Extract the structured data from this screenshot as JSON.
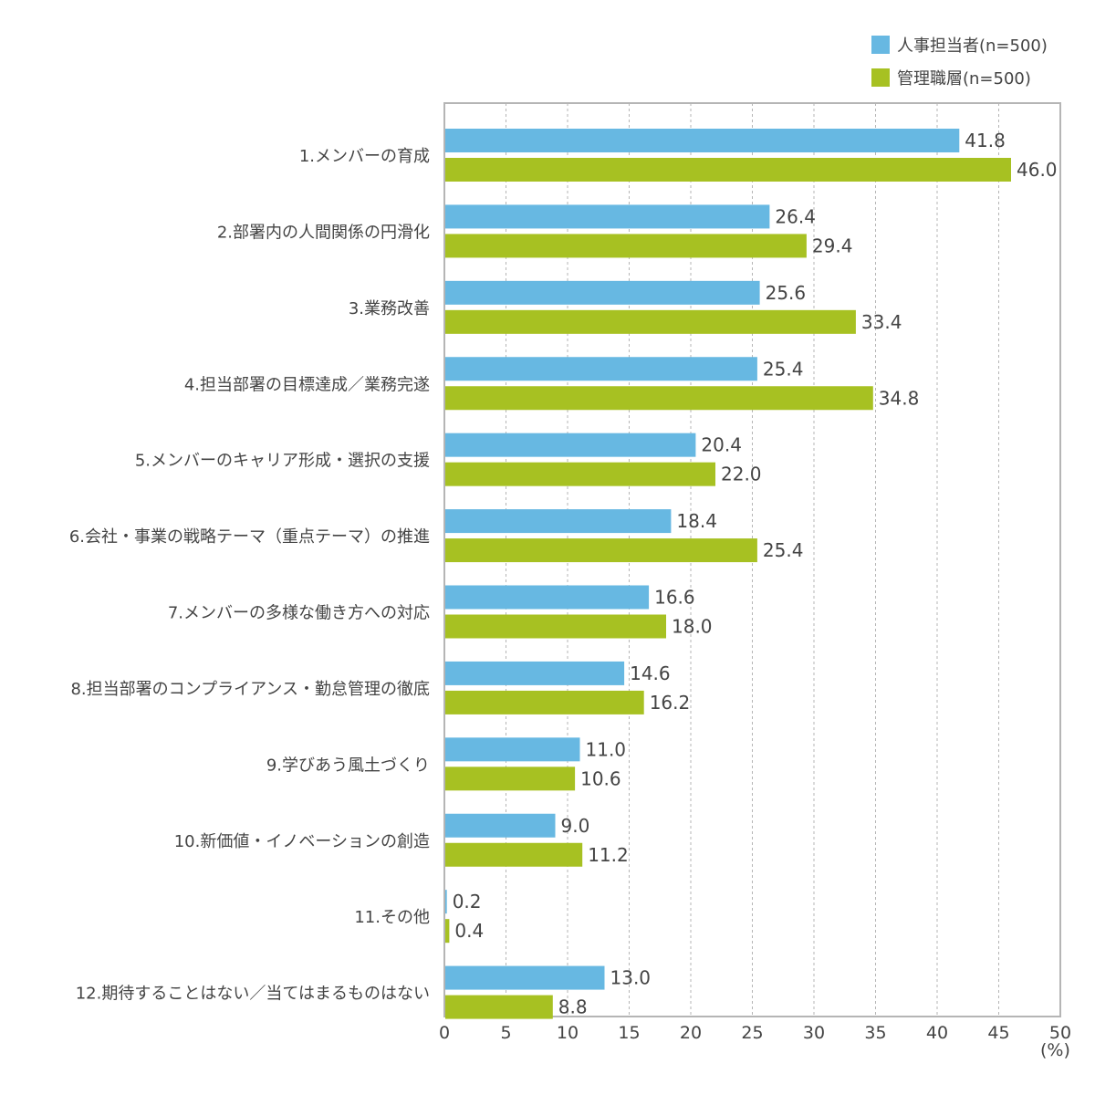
{
  "chart_data": {
    "type": "bar",
    "orientation": "horizontal",
    "categories": [
      "1.メンバーの育成",
      "2.部署内の人間関係の円滑化",
      "3.業務改善",
      "4.担当部署の目標達成／業務完遂",
      "5.メンバーのキャリア形成・選択の支援",
      "6.会社・事業の戦略テーマ（重点テーマ）の推進",
      "7.メンバーの多様な働き方への対応",
      "8.担当部署のコンプライアンス・勤怠管理の徹底",
      "9.学びあう風土づくり",
      "10.新価値・イノベーションの創造",
      "11.その他",
      "12.期待することはない／当てはまるものはない"
    ],
    "series": [
      {
        "name": "人事担当者(n=500)",
        "color": "#67b8e2",
        "values": [
          41.8,
          26.4,
          25.6,
          25.4,
          20.4,
          18.4,
          16.6,
          14.6,
          11.0,
          9.0,
          0.2,
          13.0
        ]
      },
      {
        "name": "管理職層(n=500)",
        "color": "#a7c122",
        "values": [
          46.0,
          29.4,
          33.4,
          34.8,
          22.0,
          25.4,
          18.0,
          16.2,
          10.6,
          11.2,
          0.4,
          8.8
        ]
      }
    ],
    "xlim": [
      0,
      50
    ],
    "xticks": [
      0,
      5,
      10,
      15,
      20,
      25,
      30,
      35,
      40,
      45,
      50
    ],
    "xunit": "(%)",
    "grid": true,
    "legend_position": "top-right",
    "value_labels": true,
    "value_decimals": 1
  }
}
